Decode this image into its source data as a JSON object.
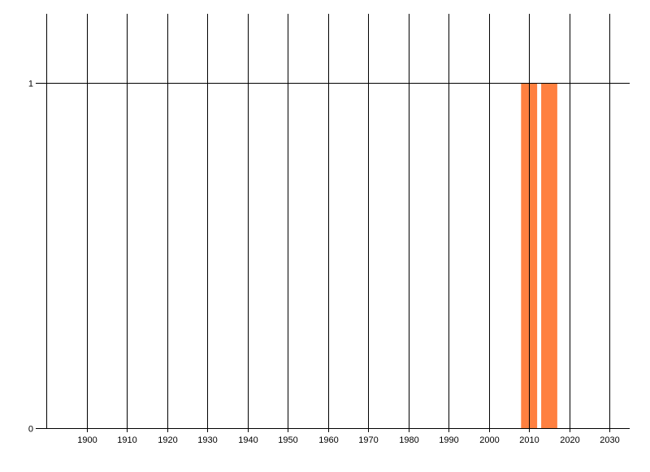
{
  "chart_data": {
    "type": "bar",
    "title": "",
    "xlabel": "",
    "ylabel": "",
    "x": [
      2010,
      2015
    ],
    "values": [
      1,
      1
    ],
    "bar_width_years": 4,
    "xlim": [
      1890,
      2035
    ],
    "ylim": [
      0,
      1.2
    ],
    "xticks": [
      1900,
      1910,
      1920,
      1930,
      1940,
      1950,
      1960,
      1970,
      1980,
      1990,
      2000,
      2010,
      2020,
      2030
    ],
    "yticks": [
      0,
      1
    ],
    "grid": true,
    "bar_color": "#FF8040",
    "legend": "none"
  }
}
